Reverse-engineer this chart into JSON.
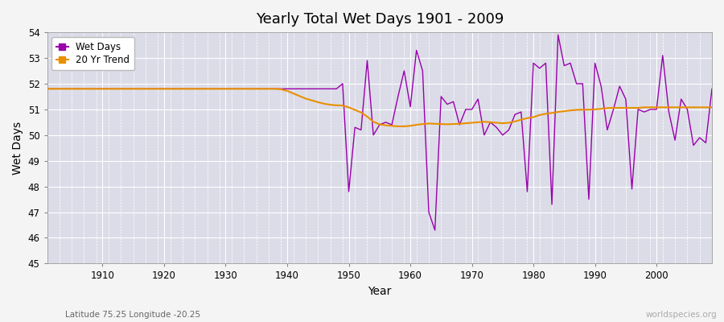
{
  "title": "Yearly Total Wet Days 1901 - 2009",
  "ylabel": "Wet Days",
  "xlabel": "Year",
  "xlim": [
    1901,
    2009
  ],
  "ylim": [
    45,
    54
  ],
  "yticks": [
    45,
    46,
    47,
    48,
    49,
    50,
    51,
    52,
    53,
    54
  ],
  "xticks": [
    1910,
    1920,
    1930,
    1940,
    1950,
    1960,
    1970,
    1980,
    1990,
    2000
  ],
  "wet_days_color": "#9900aa",
  "trend_color": "#e89000",
  "plot_bg_color": "#dcdce8",
  "fig_bg_color": "#f4f4f4",
  "legend_wet": "Wet Days",
  "legend_trend": "20 Yr Trend",
  "lat_lon_label": "Latitude 75.25 Longitude -20.25",
  "source_label": "worldspecies.org",
  "years": [
    1901,
    1902,
    1903,
    1904,
    1905,
    1906,
    1907,
    1908,
    1909,
    1910,
    1911,
    1912,
    1913,
    1914,
    1915,
    1916,
    1917,
    1918,
    1919,
    1920,
    1921,
    1922,
    1923,
    1924,
    1925,
    1926,
    1927,
    1928,
    1929,
    1930,
    1931,
    1932,
    1933,
    1934,
    1935,
    1936,
    1937,
    1938,
    1939,
    1940,
    1941,
    1942,
    1943,
    1944,
    1945,
    1946,
    1947,
    1948,
    1949,
    1950,
    1951,
    1952,
    1953,
    1954,
    1955,
    1956,
    1957,
    1958,
    1959,
    1960,
    1961,
    1962,
    1963,
    1964,
    1965,
    1966,
    1967,
    1968,
    1969,
    1970,
    1971,
    1972,
    1973,
    1974,
    1975,
    1976,
    1977,
    1978,
    1979,
    1980,
    1981,
    1982,
    1983,
    1984,
    1985,
    1986,
    1987,
    1988,
    1989,
    1990,
    1991,
    1992,
    1993,
    1994,
    1995,
    1996,
    1997,
    1998,
    1999,
    2000,
    2001,
    2002,
    2003,
    2004,
    2005,
    2006,
    2007,
    2008,
    2009
  ],
  "wet_days": [
    51.8,
    51.8,
    51.8,
    51.8,
    51.8,
    51.8,
    51.8,
    51.8,
    51.8,
    51.8,
    51.8,
    51.8,
    51.8,
    51.8,
    51.8,
    51.8,
    51.8,
    51.8,
    51.8,
    51.8,
    51.8,
    51.8,
    51.8,
    51.8,
    51.8,
    51.8,
    51.8,
    51.8,
    51.8,
    51.8,
    51.8,
    51.8,
    51.8,
    51.8,
    51.8,
    51.8,
    51.8,
    51.8,
    51.8,
    51.8,
    51.8,
    51.8,
    51.8,
    51.8,
    51.8,
    51.8,
    51.8,
    51.8,
    52.0,
    47.8,
    50.3,
    50.2,
    52.9,
    50.0,
    50.4,
    50.5,
    50.4,
    51.5,
    52.5,
    51.1,
    53.3,
    52.5,
    47.0,
    46.3,
    51.5,
    51.2,
    51.3,
    50.4,
    51.0,
    51.0,
    51.4,
    50.0,
    50.5,
    50.3,
    50.0,
    50.2,
    50.8,
    50.9,
    47.8,
    52.8,
    52.6,
    52.8,
    47.3,
    53.9,
    52.7,
    52.8,
    52.0,
    52.0,
    47.5,
    52.8,
    51.9,
    50.2,
    51.0,
    51.9,
    51.4,
    47.9,
    51.0,
    50.9,
    51.0,
    51.0,
    53.1,
    50.9,
    49.8,
    51.4,
    51.0,
    49.6,
    49.9,
    49.7,
    51.8
  ],
  "trend": [
    51.8,
    51.8,
    51.8,
    51.8,
    51.8,
    51.8,
    51.8,
    51.8,
    51.8,
    51.8,
    51.8,
    51.8,
    51.8,
    51.8,
    51.8,
    51.8,
    51.8,
    51.8,
    51.8,
    51.8,
    51.8,
    51.8,
    51.8,
    51.8,
    51.8,
    51.8,
    51.8,
    51.8,
    51.8,
    51.8,
    51.8,
    51.8,
    51.8,
    51.8,
    51.8,
    51.8,
    51.8,
    51.8,
    51.78,
    51.72,
    51.62,
    51.52,
    51.42,
    51.35,
    51.28,
    51.22,
    51.18,
    51.16,
    51.15,
    51.08,
    50.98,
    50.88,
    50.72,
    50.52,
    50.42,
    50.38,
    50.36,
    50.34,
    50.34,
    50.36,
    50.4,
    50.43,
    50.45,
    50.44,
    50.43,
    50.42,
    50.43,
    50.44,
    50.46,
    50.48,
    50.5,
    50.52,
    50.5,
    50.48,
    50.46,
    50.48,
    50.53,
    50.6,
    50.66,
    50.7,
    50.78,
    50.83,
    50.86,
    50.9,
    50.93,
    50.96,
    50.98,
    50.99,
    50.99,
    51.0,
    51.02,
    51.05,
    51.06,
    51.06,
    51.06,
    51.06,
    51.06,
    51.08,
    51.08,
    51.08,
    51.08,
    51.08,
    51.08,
    51.08,
    51.08,
    51.08,
    51.08,
    51.08,
    51.08
  ]
}
